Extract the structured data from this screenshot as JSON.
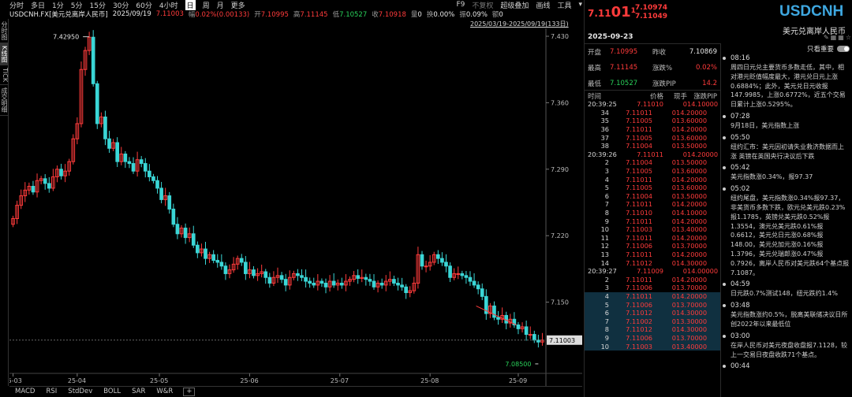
{
  "toolbar": {
    "timeframes": [
      "分时",
      "多日",
      "1分",
      "5分",
      "15分",
      "30分",
      "60分",
      "4小时",
      "日",
      "周",
      "月",
      "更多"
    ],
    "active_timeframe": "日",
    "right_items": [
      "F9",
      "不复权",
      "超级叠加",
      "画线",
      "工具"
    ]
  },
  "info": {
    "symbol": "USDCNH.FX[美元兑离岸人民币]",
    "date": "2025/09/19",
    "price": "7.11003",
    "change_label": "幅",
    "change": "0.02%(0.00133)",
    "open_label": "开",
    "open": "7.10995",
    "high_label": "高",
    "high": "7.11145",
    "low_label": "低",
    "low": "7.10527",
    "close_label": "收",
    "close": "7.10918",
    "vol_label": "量",
    "vol": "0",
    "turnover_label": "换",
    "turnover": "0.00%",
    "amp_label": "振",
    "amp": "0.09%",
    "amount_label": "额",
    "amount": "0"
  },
  "range_text": "2025/03/19-2025/09/19(133日)",
  "vtabs": [
    "分时图",
    "K线图",
    "TICK",
    "成交明细"
  ],
  "active_vtab": "K线图",
  "indicator_tabs": [
    "MACD",
    "RSI",
    "StdDev",
    "BOLL",
    "SAR",
    "W&R"
  ],
  "indicator_add": "+",
  "colors": {
    "up": "#ff3b3b",
    "down": "#3ad6d6",
    "accent": "#3ea7e0",
    "highlight": "#103040"
  },
  "chart_data": {
    "type": "candlestick",
    "y_ticks": [
      "7.430",
      "7.360",
      "7.290",
      "7.220",
      "7.150"
    ],
    "ylim": [
      7.075,
      7.435
    ],
    "x_ticks": [
      "25-03",
      "25-04",
      "25-05",
      "25-06",
      "25-07",
      "25-08",
      "25-09"
    ],
    "max_label": "7.42950",
    "min_label": "7.08500",
    "current_price": "7.11003",
    "closes": [
      7.238,
      7.252,
      7.262,
      7.268,
      7.272,
      7.266,
      7.278,
      7.28,
      7.275,
      7.27,
      7.282,
      7.29,
      7.283,
      7.288,
      7.298,
      7.322,
      7.338,
      7.395,
      7.415,
      7.429,
      7.38,
      7.338,
      7.345,
      7.322,
      7.312,
      7.318,
      7.298,
      7.306,
      7.298,
      7.296,
      7.288,
      7.3,
      7.296,
      7.288,
      7.282,
      7.278,
      7.27,
      7.258,
      7.262,
      7.248,
      7.232,
      7.222,
      7.228,
      7.218,
      7.222,
      7.21,
      7.202,
      7.206,
      7.196,
      7.2,
      7.194,
      7.192,
      7.188,
      7.18,
      7.184,
      7.19,
      7.196,
      7.192,
      7.18,
      7.184,
      7.178,
      7.18,
      7.182,
      7.176,
      7.17,
      7.176,
      7.178,
      7.174,
      7.168,
      7.176,
      7.18,
      7.178,
      7.176,
      7.172,
      7.17,
      7.168,
      7.172,
      7.17,
      7.166,
      7.172,
      7.168,
      7.17,
      7.168,
      7.172,
      7.174,
      7.178,
      7.175,
      7.176,
      7.174,
      7.172,
      7.166,
      7.17,
      7.168,
      7.172,
      7.174,
      7.17,
      7.168,
      7.166,
      7.16,
      7.162,
      7.17,
      7.2,
      7.188,
      7.188,
      7.192,
      7.2,
      7.196,
      7.192,
      7.188,
      7.176,
      7.18,
      7.18,
      7.178,
      7.176,
      7.172,
      7.168,
      7.164,
      7.156,
      7.138,
      7.146,
      7.134,
      7.132,
      7.136,
      7.128,
      7.132,
      7.126,
      7.122,
      7.124,
      7.116,
      7.116,
      7.11,
      7.108,
      7.11
    ]
  },
  "quote": {
    "big_prefix": "7.11",
    "big_digits": "01",
    "big_sup": "1",
    "bid": "7.10974",
    "ask": "7.11049",
    "ticker": "USDCNH",
    "ticker_name": "美元兑离岸人民币",
    "date": "2025-09-23",
    "stats": [
      {
        "l1": "开盘",
        "v1": "7.10995",
        "c1": "red",
        "l2": "昨收",
        "v2": "7.10869",
        "c2": "white"
      },
      {
        "l1": "最高",
        "v1": "7.11145",
        "c1": "red",
        "l2": "涨跌%",
        "v2": "0.02%",
        "c2": "red"
      },
      {
        "l1": "最低",
        "v1": "7.10527",
        "c1": "green",
        "l2": "涨跌PIP",
        "v2": "14.2",
        "c2": "red"
      }
    ]
  },
  "ticks": {
    "headers": [
      "时间",
      "价格",
      "现手",
      "涨跌PIP"
    ],
    "rows": [
      {
        "t": "20:39:25",
        "p": "7.11010",
        "v": "0",
        "d": "14.10000",
        "sub": false,
        "hl": false
      },
      {
        "t": "34",
        "p": "7.11011",
        "v": "0",
        "d": "14.20000",
        "sub": true,
        "hl": false
      },
      {
        "t": "35",
        "p": "7.11005",
        "v": "0",
        "d": "13.60000",
        "sub": true,
        "hl": false
      },
      {
        "t": "36",
        "p": "7.11011",
        "v": "0",
        "d": "14.20000",
        "sub": true,
        "hl": false
      },
      {
        "t": "37",
        "p": "7.11005",
        "v": "0",
        "d": "13.60000",
        "sub": true,
        "hl": false
      },
      {
        "t": "38",
        "p": "7.11004",
        "v": "0",
        "d": "13.50000",
        "sub": true,
        "hl": false
      },
      {
        "t": "20:39:26",
        "p": "7.11011",
        "v": "0",
        "d": "14.20000",
        "sub": false,
        "hl": false
      },
      {
        "t": "2",
        "p": "7.11004",
        "v": "0",
        "d": "13.50000",
        "sub": true,
        "hl": false
      },
      {
        "t": "3",
        "p": "7.11005",
        "v": "0",
        "d": "13.60000",
        "sub": true,
        "hl": false
      },
      {
        "t": "4",
        "p": "7.11011",
        "v": "0",
        "d": "14.20000",
        "sub": true,
        "hl": false
      },
      {
        "t": "5",
        "p": "7.11005",
        "v": "0",
        "d": "13.60000",
        "sub": true,
        "hl": false
      },
      {
        "t": "6",
        "p": "7.11004",
        "v": "0",
        "d": "13.50000",
        "sub": true,
        "hl": false
      },
      {
        "t": "7",
        "p": "7.11011",
        "v": "0",
        "d": "14.20000",
        "sub": true,
        "hl": false
      },
      {
        "t": "8",
        "p": "7.11010",
        "v": "0",
        "d": "14.10000",
        "sub": true,
        "hl": false
      },
      {
        "t": "9",
        "p": "7.11011",
        "v": "0",
        "d": "14.20000",
        "sub": true,
        "hl": false
      },
      {
        "t": "10",
        "p": "7.11003",
        "v": "0",
        "d": "13.40000",
        "sub": true,
        "hl": false
      },
      {
        "t": "11",
        "p": "7.11011",
        "v": "0",
        "d": "14.20000",
        "sub": true,
        "hl": false
      },
      {
        "t": "12",
        "p": "7.11006",
        "v": "0",
        "d": "13.70000",
        "sub": true,
        "hl": false
      },
      {
        "t": "13",
        "p": "7.11011",
        "v": "0",
        "d": "14.20000",
        "sub": true,
        "hl": false
      },
      {
        "t": "14",
        "p": "7.11012",
        "v": "0",
        "d": "14.30000",
        "sub": true,
        "hl": false
      },
      {
        "t": "20:39:27",
        "p": "7.11009",
        "v": "0",
        "d": "14.00000",
        "sub": false,
        "hl": false
      },
      {
        "t": "2",
        "p": "7.11011",
        "v": "0",
        "d": "14.20000",
        "sub": true,
        "hl": false
      },
      {
        "t": "3",
        "p": "7.11006",
        "v": "0",
        "d": "13.70000",
        "sub": true,
        "hl": false
      },
      {
        "t": "4",
        "p": "7.11011",
        "v": "0",
        "d": "14.20000",
        "sub": true,
        "hl": true
      },
      {
        "t": "5",
        "p": "7.11006",
        "v": "0",
        "d": "13.70000",
        "sub": true,
        "hl": true
      },
      {
        "t": "6",
        "p": "7.11012",
        "v": "0",
        "d": "14.30000",
        "sub": true,
        "hl": true
      },
      {
        "t": "7",
        "p": "7.11002",
        "v": "0",
        "d": "13.30000",
        "sub": true,
        "hl": true
      },
      {
        "t": "8",
        "p": "7.11012",
        "v": "0",
        "d": "14.30000",
        "sub": true,
        "hl": true
      },
      {
        "t": "9",
        "p": "7.11006",
        "v": "0",
        "d": "13.70000",
        "sub": true,
        "hl": true
      },
      {
        "t": "10",
        "p": "7.11003",
        "v": "0",
        "d": "13.40000",
        "sub": true,
        "hl": true
      }
    ]
  },
  "news": {
    "toggle_label": "只看重要",
    "items": [
      {
        "time": "08:16",
        "text": "周四日元兑主要货币多数走低，其中，相对港元贬值幅度最大，港元兑日元上涨0.6884%；此外，美元兑日元收报147.9985，上涨0.6772%，近五个交易日累计上涨0.5295%。"
      },
      {
        "time": "07:28",
        "text": "9月18日，美元指数上涨"
      },
      {
        "time": "05:50",
        "text": "纽约汇市：美元因初请失业救济数据而上涨 英镑在英国央行决议后下跌"
      },
      {
        "time": "05:42",
        "text": "美元指数涨0.34%，报97.37"
      },
      {
        "time": "05:02",
        "text": "纽约尾盘，美元指数涨0.34%报97.37，非美货币多数下跌，欧元兑美元跌0.23%报1.1785，英镑兑美元跌0.52%报1.3554，澳元兑美元跌0.61%报0.6612，美元兑日元涨0.68%报148.00，美元兑加元涨0.16%报1.3796，美元兑瑞郎涨0.47%报0.7926，离岸人民币对美元跌64个基点报7.1087。"
      },
      {
        "time": "04:59",
        "text": "日元跌0.7%测试148，纽元跌约1.4%"
      },
      {
        "time": "03:48",
        "text": "美元指数涨约0.5%，脱离美联储决议日所创2022年以来最低位"
      },
      {
        "time": "03:00",
        "text": "在岸人民币对美元夜盘收盘报7.1128，较上一交易日夜盘收跌71个基点。"
      },
      {
        "time": "00:44",
        "text": ""
      }
    ]
  }
}
